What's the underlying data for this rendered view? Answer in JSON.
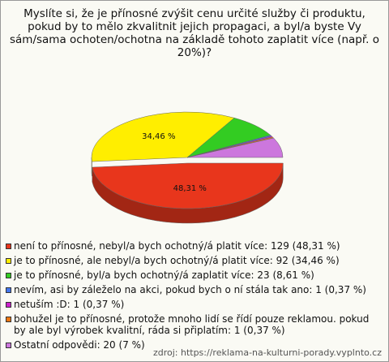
{
  "chart_data": {
    "type": "pie",
    "title": "Myslíte si, že je přínosné zvýšit cenu určité služby či produktu, pokud by to mělo zkvalitnit jejich propagaci, a byl/a byste Vy sám/sama ochoten/ochotna na základě tohoto zaplatit více (např. o 20%)?",
    "categories": [
      "není to přínosné, nebyl/a bych ochotný/á platit více: 129 (48,31 %)",
      "je to přínosné, ale nebyl/a bych ochotný/á platit více: 92 (34,46 %)",
      "je to přínosné, byl/a bych ochotný/á zaplatit více: 23 (8,61 %)",
      "nevím, asi by záleželo na akci, pokud bych o ní stála tak ano: 1 (0,37 %)",
      "netuším :D: 1 (0,37 %)",
      "bohužel je to přínosné, protože mnoho lidí se řídí pouze reklamou. pokud by ale byl výrobek kvalitní, ráda si připlatím: 1 (0,37 %)",
      "Ostatní odpovědi: 20 (7 %)"
    ],
    "values": [
      48.31,
      34.46,
      8.61,
      0.37,
      0.37,
      0.37,
      7
    ],
    "value_labels": [
      "48,31 %",
      "34,46 %",
      null,
      null,
      null,
      null,
      null
    ],
    "colors": [
      "#e8361c",
      "#ffee00",
      "#33cc22",
      "#4477ee",
      "#cc22cc",
      "#ee7711",
      "#cc77dd"
    ],
    "source": "zdroj: https://reklama-na-kulturni-porady.vyplnto.cz"
  }
}
